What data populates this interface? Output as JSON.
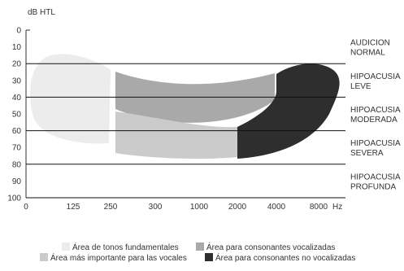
{
  "chart_data": {
    "type": "area",
    "title": "",
    "ylabel": "dB HTL",
    "xlabel": "Hz",
    "x_ticks": [
      "0",
      "125",
      "250",
      "300",
      "1000",
      "2000",
      "4000",
      "8000"
    ],
    "y_ticks": [
      0,
      10,
      20,
      30,
      40,
      50,
      60,
      70,
      80,
      90,
      100
    ],
    "ylim": [
      0,
      100
    ],
    "y_inverted": true,
    "grid": "horizontal at 20, 40, 60, 80",
    "hearing_zones": [
      {
        "lines": [
          "AUDICION",
          "NORMAL"
        ],
        "range_db": [
          0,
          20
        ]
      },
      {
        "lines": [
          "HIPOACUSIA",
          "LEVE"
        ],
        "range_db": [
          20,
          40
        ]
      },
      {
        "lines": [
          "HIPOACUSIA",
          "MODERADA"
        ],
        "range_db": [
          40,
          60
        ]
      },
      {
        "lines": [
          "HIPOACUSIA",
          "SEVERA"
        ],
        "range_db": [
          60,
          80
        ]
      },
      {
        "lines": [
          "HIPOACUSIA",
          "PROFUNDA"
        ],
        "range_db": [
          80,
          100
        ]
      }
    ],
    "series": [
      {
        "name": "Área de tonos fundamentales",
        "color": "#ececec",
        "x_range_ticks": [
          "0",
          "250"
        ],
        "db_range": [
          14,
          61
        ]
      },
      {
        "name": "Área para consonantes vocalizadas",
        "color": "#a9a9a9",
        "x_range_ticks": [
          "250",
          "4000"
        ],
        "db_range": [
          22,
          51
        ]
      },
      {
        "name": "Área más importante para las vocales",
        "color": "#cbcbcb",
        "x_range_ticks": [
          "250",
          "2000"
        ],
        "db_range": [
          43,
          67
        ]
      },
      {
        "name": "Área para consonantes no vocalizadas",
        "color": "#2e2e2e",
        "x_range_ticks": [
          "2000",
          "8000"
        ],
        "db_range": [
          19,
          67
        ]
      }
    ],
    "legend_position": "bottom"
  }
}
